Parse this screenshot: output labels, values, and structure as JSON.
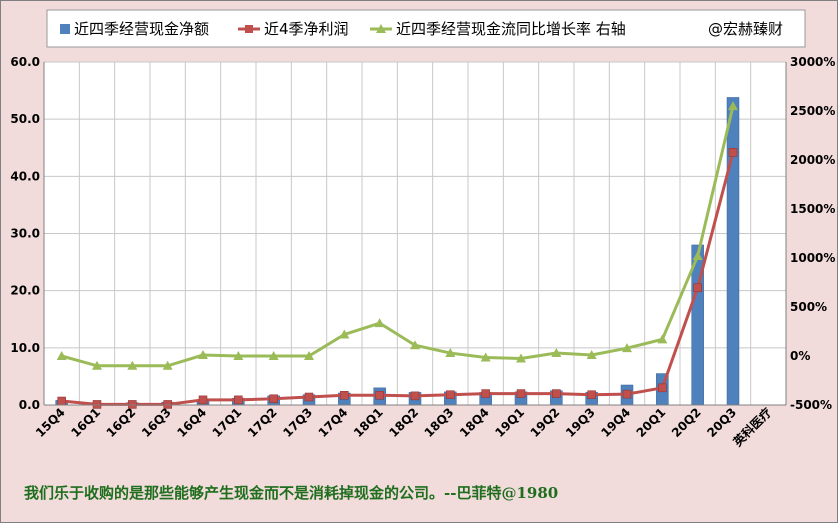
{
  "chart_data": {
    "type": "bar",
    "categories": [
      "15Q4",
      "16Q1",
      "16Q2",
      "16Q3",
      "16Q4",
      "17Q1",
      "17Q2",
      "17Q3",
      "17Q4",
      "18Q1",
      "18Q2",
      "18Q3",
      "18Q4",
      "19Q1",
      "19Q2",
      "19Q3",
      "19Q4",
      "20Q1",
      "20Q2",
      "20Q3"
    ],
    "company": "英科医疗",
    "series": [
      {
        "name": "近四季经营现金净额",
        "type": "bar",
        "axis": "left",
        "color": "#4f81bd",
        "values": [
          0.8,
          0.3,
          0.4,
          0.5,
          0.9,
          1.2,
          1.6,
          1.8,
          2.1,
          3.0,
          2.2,
          2.3,
          2.2,
          2.3,
          2.5,
          2.2,
          3.5,
          5.5,
          28.0,
          53.8
        ]
      },
      {
        "name": "近4季净利润",
        "type": "line",
        "axis": "left",
        "color": "#c0504d",
        "marker": "square",
        "values": [
          0.7,
          0.1,
          0.1,
          0.1,
          0.9,
          0.9,
          1.1,
          1.4,
          1.7,
          1.7,
          1.6,
          1.8,
          2.0,
          2.0,
          2.0,
          1.8,
          1.9,
          3.0,
          20.5,
          44.2
        ]
      },
      {
        "name": "近四季经营现金流同比增长率 右轴",
        "type": "line",
        "axis": "right",
        "color": "#9bbb59",
        "marker": "triangle",
        "values": [
          0,
          -100,
          -100,
          -100,
          10,
          0,
          0,
          0,
          220,
          335,
          110,
          30,
          -15,
          -25,
          30,
          10,
          80,
          170,
          1020,
          2550
        ]
      }
    ],
    "watermark": "@宏赫臻财",
    "yleft": {
      "min": 0,
      "max": 60,
      "step": 10,
      "ticks": [
        "0.0",
        "10.0",
        "20.0",
        "30.0",
        "40.0",
        "50.0",
        "60.0"
      ]
    },
    "yright": {
      "min": -500,
      "max": 3000,
      "step": 500,
      "ticks": [
        "-500%",
        "0%",
        "500%",
        "1000%",
        "1500%",
        "2000%",
        "2500%",
        "3000%"
      ]
    },
    "grid": true,
    "legend_position": "top",
    "quote": "我们乐于收购的是那些能够产生现金而不是消耗掉现金的公司。--巴菲特@1980"
  }
}
